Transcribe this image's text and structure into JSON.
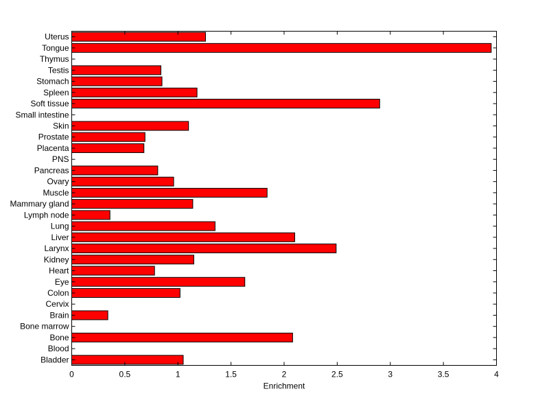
{
  "chart_data": {
    "type": "bar",
    "orientation": "horizontal",
    "title": "",
    "xlabel": "Enrichment",
    "ylabel": "",
    "xlim": [
      0,
      4
    ],
    "xticks": [
      0,
      0.5,
      1,
      1.5,
      2,
      2.5,
      3,
      3.5,
      4
    ],
    "xtick_labels": [
      "0",
      "0.5",
      "1",
      "1.5",
      "2",
      "2.5",
      "3",
      "3.5",
      "4"
    ],
    "grid": false,
    "legend": "none",
    "bar_color": "#ff0000",
    "categories": [
      "Bladder",
      "Blood",
      "Bone",
      "Bone marrow",
      "Brain",
      "Cervix",
      "Colon",
      "Eye",
      "Heart",
      "Kidney",
      "Larynx",
      "Liver",
      "Lung",
      "Lymph node",
      "Mammary gland",
      "Muscle",
      "Ovary",
      "Pancreas",
      "PNS",
      "Placenta",
      "Prostate",
      "Skin",
      "Small intestine",
      "Soft tissue",
      "Spleen",
      "Stomach",
      "Testis",
      "Thymus",
      "Tongue",
      "Uterus"
    ],
    "values": [
      1.05,
      0,
      2.08,
      0,
      0.34,
      0,
      1.02,
      1.63,
      0.78,
      1.15,
      2.49,
      2.1,
      1.35,
      0.36,
      1.14,
      1.84,
      0.96,
      0.81,
      0,
      0.68,
      0.69,
      1.1,
      0,
      2.9,
      1.18,
      0.85,
      0.84,
      0,
      3.95,
      1.26
    ]
  }
}
